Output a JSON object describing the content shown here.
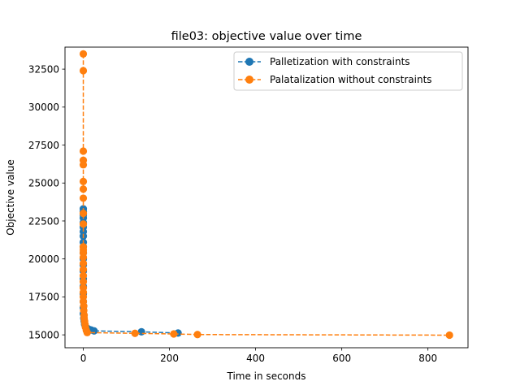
{
  "chart_data": {
    "type": "line",
    "title": "file03: objective value over time",
    "xlabel": "Time in seconds",
    "ylabel": "Objective value",
    "xlim": [
      -42.5,
      893
    ],
    "ylim": [
      14150,
      33950
    ],
    "xticks": [
      0,
      200,
      400,
      600,
      800
    ],
    "yticks": [
      15000,
      17500,
      20000,
      22500,
      25000,
      27500,
      30000,
      32500
    ],
    "grid": false,
    "legend_position": "top-right",
    "series": [
      {
        "name": "Palletization with constraints",
        "color": "#1f77b4",
        "line_style": "dashed",
        "marker": "circle",
        "points": [
          {
            "x": 0,
            "y": 23300
          },
          {
            "x": 0,
            "y": 23100
          },
          {
            "x": 0,
            "y": 22900
          },
          {
            "x": 0,
            "y": 22700
          },
          {
            "x": 0,
            "y": 22400
          },
          {
            "x": 0,
            "y": 22100
          },
          {
            "x": 0,
            "y": 21800
          },
          {
            "x": 0,
            "y": 21500
          },
          {
            "x": 0,
            "y": 21100
          },
          {
            "x": 0,
            "y": 20800
          },
          {
            "x": 0,
            "y": 20400
          },
          {
            "x": 0,
            "y": 20000
          },
          {
            "x": 0,
            "y": 19600
          },
          {
            "x": 0,
            "y": 19200
          },
          {
            "x": 0,
            "y": 18700
          },
          {
            "x": 0,
            "y": 18200
          },
          {
            "x": 0,
            "y": 17700
          },
          {
            "x": 0,
            "y": 17200
          },
          {
            "x": 0,
            "y": 16800
          },
          {
            "x": 0,
            "y": 16400
          },
          {
            "x": 1,
            "y": 16100
          },
          {
            "x": 2,
            "y": 15900
          },
          {
            "x": 3,
            "y": 15700
          },
          {
            "x": 5,
            "y": 15550
          },
          {
            "x": 8,
            "y": 15450
          },
          {
            "x": 12,
            "y": 15380
          },
          {
            "x": 18,
            "y": 15320
          },
          {
            "x": 25,
            "y": 15260
          },
          {
            "x": 135,
            "y": 15200
          },
          {
            "x": 220,
            "y": 15120
          }
        ]
      },
      {
        "name": "Palatalization without constraints",
        "color": "#ff7f0e",
        "line_style": "dashed",
        "marker": "circle",
        "points": [
          {
            "x": 0,
            "y": 33500
          },
          {
            "x": 0,
            "y": 32400
          },
          {
            "x": 0,
            "y": 27100
          },
          {
            "x": 0,
            "y": 26500
          },
          {
            "x": 0,
            "y": 26200
          },
          {
            "x": 0,
            "y": 25100
          },
          {
            "x": 0,
            "y": 24600
          },
          {
            "x": 0,
            "y": 24000
          },
          {
            "x": 0,
            "y": 23000
          },
          {
            "x": 0,
            "y": 22300
          },
          {
            "x": 0,
            "y": 20800
          },
          {
            "x": 0,
            "y": 20600
          },
          {
            "x": 0,
            "y": 20400
          },
          {
            "x": 0,
            "y": 20100
          },
          {
            "x": 0,
            "y": 19700
          },
          {
            "x": 0,
            "y": 19300
          },
          {
            "x": 0,
            "y": 18900
          },
          {
            "x": 0,
            "y": 18500
          },
          {
            "x": 0,
            "y": 18100
          },
          {
            "x": 0,
            "y": 17800
          },
          {
            "x": 0,
            "y": 17500
          },
          {
            "x": 0,
            "y": 17200
          },
          {
            "x": 1,
            "y": 16900
          },
          {
            "x": 1,
            "y": 16600
          },
          {
            "x": 2,
            "y": 16300
          },
          {
            "x": 2,
            "y": 16100
          },
          {
            "x": 3,
            "y": 15900
          },
          {
            "x": 4,
            "y": 15700
          },
          {
            "x": 5,
            "y": 15500
          },
          {
            "x": 7,
            "y": 15300
          },
          {
            "x": 9,
            "y": 15150
          },
          {
            "x": 120,
            "y": 15100
          },
          {
            "x": 210,
            "y": 15060
          },
          {
            "x": 265,
            "y": 15020
          },
          {
            "x": 850,
            "y": 14980
          }
        ]
      }
    ]
  }
}
